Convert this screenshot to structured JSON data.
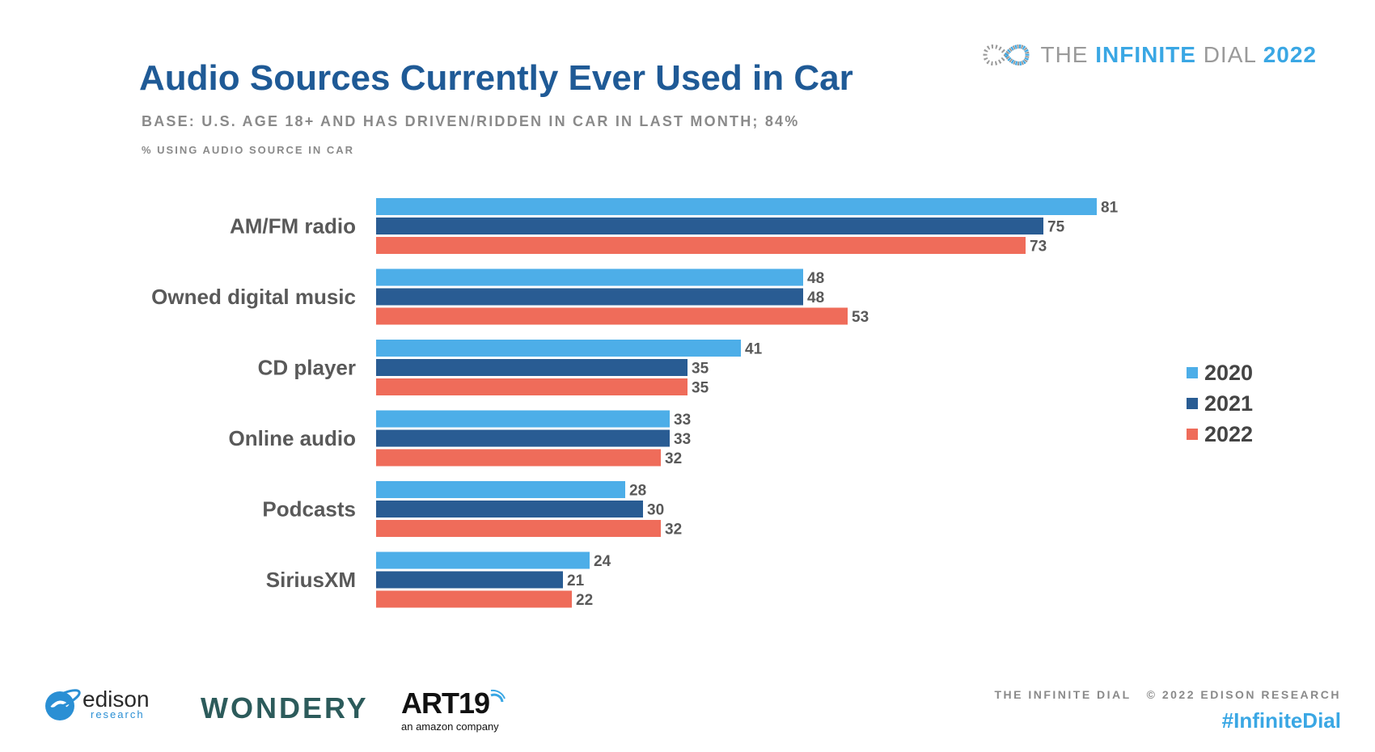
{
  "header": {
    "title": "Audio Sources Currently Ever Used in Car",
    "base": "BASE: U.S. AGE 18+ AND HAS DRIVEN/RIDDEN IN CAR IN LAST MONTH; 84%",
    "measure": "% USING AUDIO SOURCE IN CAR"
  },
  "brand": {
    "the": "THE",
    "infinite": "INFINITE",
    "dial": "DIAL",
    "year": "2022"
  },
  "chart_data": {
    "type": "bar",
    "orientation": "horizontal",
    "title": "Audio Sources Currently Ever Used in Car",
    "xlabel": "% USING AUDIO SOURCE IN CAR",
    "categories": [
      "AM/FM radio",
      "Owned digital music",
      "CD player",
      "Online audio",
      "Podcasts",
      "SiriusXM"
    ],
    "series": [
      {
        "name": "2020",
        "color": "#4daee8",
        "values": [
          81,
          48,
          41,
          33,
          28,
          24
        ]
      },
      {
        "name": "2021",
        "color": "#295c93",
        "values": [
          75,
          48,
          35,
          33,
          30,
          21
        ]
      },
      {
        "name": "2022",
        "color": "#ef6c5a",
        "values": [
          73,
          53,
          35,
          32,
          32,
          22
        ]
      }
    ],
    "xlim": [
      0,
      100
    ],
    "legend_position": "right",
    "grid": false,
    "data_labels": true
  },
  "footer": {
    "credit": "THE INFINITE DIAL   © 2022 EDISON RESEARCH",
    "hashtag": "#InfiniteDial"
  },
  "logos": {
    "edison_name": "edison",
    "edison_sub": "research",
    "wondery": "WONDERY",
    "art19": "ART19",
    "art19_sub": "an amazon company"
  }
}
